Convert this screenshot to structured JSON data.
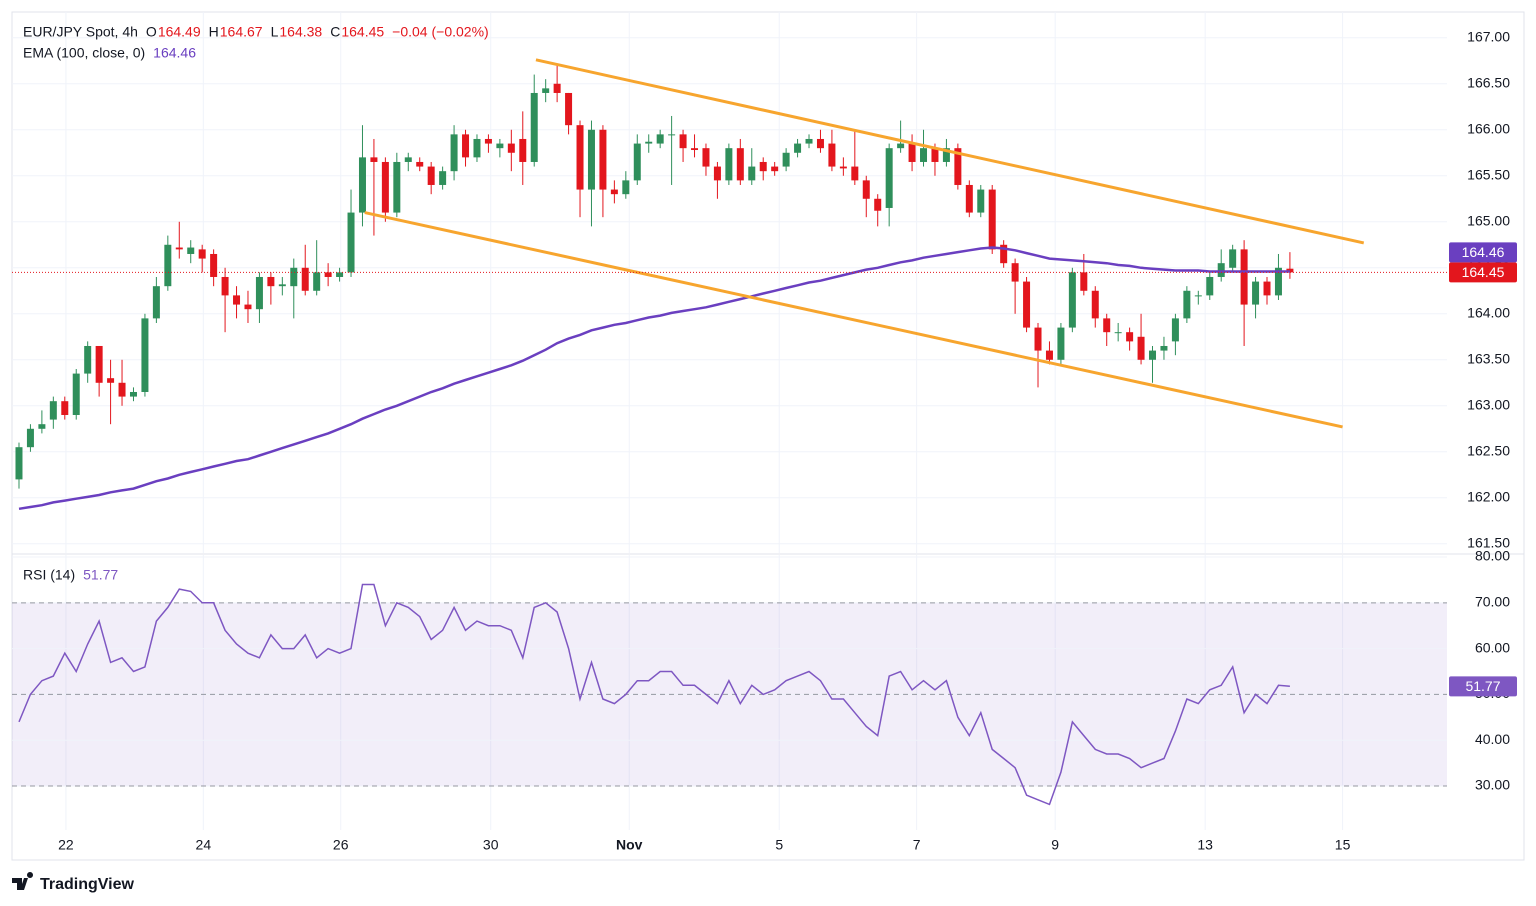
{
  "header": {
    "symbol": "EUR/JPY Spot, 4h",
    "ohlc_labels": [
      "O",
      "H",
      "L",
      "C"
    ],
    "change": "−0.04 (−0.02%)"
  },
  "footer": "TradingView",
  "chart_data": [
    {
      "type": "candlestick",
      "up_color": "#2f8f5b",
      "down_color": "#e3161d",
      "open": [
        162.2,
        162.55,
        162.75,
        162.85,
        163.05,
        162.9,
        163.35,
        163.65,
        163.3,
        163.25,
        163.1,
        163.15,
        163.95,
        164.3,
        164.72,
        164.65,
        164.7,
        164.65,
        164.4,
        164.2,
        164.1,
        164.05,
        164.4,
        164.3,
        164.3,
        164.5,
        164.25,
        164.45,
        164.4,
        164.45,
        165.1,
        165.7,
        165.65,
        165.1,
        165.65,
        165.65,
        165.6,
        165.4,
        165.55,
        165.95,
        165.7,
        165.9,
        165.8,
        165.85,
        165.9,
        165.65,
        166.4,
        166.5,
        166.4,
        166.05,
        165.35,
        166.0,
        165.35,
        165.3,
        165.45,
        165.85,
        165.85,
        165.95,
        165.95,
        165.8,
        165.8,
        165.6,
        165.45,
        165.8,
        165.45,
        165.65,
        165.6,
        165.6,
        165.75,
        165.85,
        165.9,
        165.85,
        165.6,
        165.6,
        165.45,
        165.25,
        165.15,
        165.8,
        165.85,
        165.65,
        165.8,
        165.65,
        165.8,
        165.4,
        165.1,
        165.35,
        164.75,
        164.55,
        164.35,
        163.85,
        163.6,
        163.5,
        163.85,
        164.45,
        164.25,
        163.95,
        163.8,
        163.8,
        163.75,
        163.5,
        163.6,
        163.7,
        163.95,
        164.2,
        164.2,
        164.4,
        164.5,
        164.7,
        164.1,
        164.35,
        164.2,
        164.49
      ],
      "high": [
        162.6,
        162.8,
        162.95,
        163.1,
        163.1,
        163.4,
        163.7,
        163.65,
        163.5,
        163.5,
        163.2,
        164.0,
        164.4,
        164.85,
        165.0,
        164.8,
        164.75,
        164.7,
        164.5,
        164.3,
        164.25,
        164.45,
        164.45,
        164.4,
        164.6,
        164.75,
        164.8,
        164.55,
        164.5,
        165.35,
        166.05,
        165.9,
        165.7,
        165.75,
        165.75,
        165.7,
        165.65,
        165.6,
        166.05,
        166.0,
        165.95,
        165.95,
        165.9,
        166.0,
        166.2,
        166.6,
        166.55,
        166.7,
        166.4,
        166.1,
        166.1,
        166.05,
        165.45,
        165.55,
        165.95,
        165.95,
        166.0,
        166.15,
        166.0,
        165.95,
        165.85,
        165.65,
        165.85,
        165.9,
        165.8,
        165.7,
        165.65,
        165.8,
        165.9,
        165.95,
        166.0,
        166.0,
        165.7,
        166.0,
        165.5,
        165.3,
        165.85,
        166.1,
        165.95,
        166.0,
        165.85,
        165.9,
        165.85,
        165.45,
        165.4,
        165.4,
        164.8,
        164.6,
        164.4,
        163.9,
        163.7,
        163.9,
        164.5,
        164.65,
        164.3,
        164.0,
        163.9,
        163.85,
        164.0,
        163.65,
        163.75,
        164.0,
        164.3,
        164.25,
        164.45,
        164.7,
        164.75,
        164.8,
        164.4,
        164.4,
        164.65,
        164.67
      ],
      "low": [
        162.1,
        162.5,
        162.7,
        162.75,
        162.85,
        162.85,
        163.25,
        163.1,
        162.8,
        163.0,
        163.05,
        163.1,
        163.9,
        164.25,
        164.6,
        164.55,
        164.45,
        164.3,
        163.8,
        163.95,
        163.9,
        163.9,
        164.1,
        164.2,
        163.95,
        164.2,
        164.2,
        164.3,
        164.35,
        164.4,
        164.95,
        164.85,
        165.0,
        165.05,
        165.55,
        165.55,
        165.3,
        165.35,
        165.45,
        165.6,
        165.65,
        165.75,
        165.7,
        165.55,
        165.4,
        165.6,
        166.3,
        166.3,
        165.95,
        165.05,
        164.95,
        165.05,
        165.2,
        165.25,
        165.4,
        165.75,
        165.8,
        165.4,
        165.65,
        165.7,
        165.5,
        165.25,
        165.4,
        165.4,
        165.4,
        165.45,
        165.5,
        165.55,
        165.7,
        165.8,
        165.75,
        165.55,
        165.5,
        165.4,
        165.05,
        164.95,
        164.95,
        165.75,
        165.55,
        165.6,
        165.5,
        165.6,
        165.35,
        165.05,
        165.05,
        164.65,
        164.5,
        164.0,
        163.8,
        163.2,
        163.45,
        163.45,
        163.8,
        164.2,
        163.85,
        163.65,
        163.7,
        163.6,
        163.45,
        163.25,
        163.5,
        163.55,
        163.9,
        164.1,
        164.15,
        164.35,
        164.45,
        163.65,
        163.95,
        164.1,
        164.15,
        164.38
      ],
      "close": [
        162.55,
        162.75,
        162.8,
        163.05,
        162.9,
        163.35,
        163.65,
        163.25,
        163.25,
        163.1,
        163.15,
        163.95,
        164.3,
        164.75,
        164.7,
        164.72,
        164.6,
        164.4,
        164.2,
        164.1,
        164.05,
        164.4,
        164.3,
        164.32,
        164.5,
        164.25,
        164.45,
        164.4,
        164.45,
        165.1,
        165.7,
        165.65,
        165.1,
        165.65,
        165.7,
        165.6,
        165.4,
        165.55,
        165.95,
        165.7,
        165.9,
        165.85,
        165.85,
        165.75,
        165.65,
        166.4,
        166.45,
        166.4,
        166.05,
        165.35,
        166.0,
        165.35,
        165.3,
        165.45,
        165.85,
        165.87,
        165.95,
        165.95,
        165.8,
        165.78,
        165.6,
        165.45,
        165.8,
        165.45,
        165.6,
        165.55,
        165.55,
        165.75,
        165.85,
        165.9,
        165.8,
        165.6,
        165.58,
        165.45,
        165.25,
        165.12,
        165.8,
        165.85,
        165.65,
        165.8,
        165.65,
        165.8,
        165.4,
        165.1,
        165.35,
        164.7,
        164.55,
        164.35,
        163.85,
        163.6,
        163.5,
        163.85,
        164.45,
        164.25,
        163.95,
        163.8,
        163.8,
        163.7,
        163.5,
        163.6,
        163.65,
        163.95,
        164.25,
        164.2,
        164.4,
        164.55,
        164.7,
        164.1,
        164.35,
        164.2,
        164.5,
        164.45
      ],
      "ema": {
        "name": "EMA (100, close, 0)",
        "color": "#6a3fc0",
        "values": [
          161.88,
          161.9,
          161.92,
          161.95,
          161.97,
          161.99,
          162.01,
          162.03,
          162.06,
          162.08,
          162.1,
          162.14,
          162.18,
          162.21,
          162.25,
          162.28,
          162.31,
          162.34,
          162.37,
          162.4,
          162.42,
          162.46,
          162.5,
          162.54,
          162.58,
          162.62,
          162.66,
          162.7,
          162.75,
          162.8,
          162.86,
          162.91,
          162.96,
          163.0,
          163.05,
          163.1,
          163.15,
          163.19,
          163.24,
          163.28,
          163.32,
          163.36,
          163.4,
          163.44,
          163.49,
          163.55,
          163.61,
          163.68,
          163.73,
          163.77,
          163.82,
          163.85,
          163.88,
          163.9,
          163.93,
          163.96,
          163.98,
          164.01,
          164.03,
          164.05,
          164.07,
          164.1,
          164.13,
          164.16,
          164.19,
          164.22,
          164.25,
          164.28,
          164.31,
          164.34,
          164.36,
          164.39,
          164.42,
          164.45,
          164.48,
          164.5,
          164.53,
          164.56,
          164.58,
          164.61,
          164.63,
          164.65,
          164.67,
          164.69,
          164.71,
          164.72,
          164.71,
          164.69,
          164.66,
          164.63,
          164.6,
          164.59,
          164.58,
          164.57,
          164.56,
          164.55,
          164.53,
          164.52,
          164.5,
          164.49,
          164.48,
          164.47,
          164.47,
          164.47,
          164.46,
          164.46,
          164.46,
          164.46,
          164.46,
          164.46,
          164.46,
          164.46
        ]
      },
      "trend_color": "#f7a52e",
      "trend_lines": [
        {
          "x": [
            45.15,
            117.45
          ],
          "y": [
            166.76,
            164.77
          ]
        },
        {
          "x": [
            30.2,
            115.6
          ],
          "y": [
            165.1,
            162.77
          ]
        }
      ],
      "xlim": [
        -0.61,
        124.72
      ],
      "ylim": [
        161.4,
        167.28
      ],
      "yticks": [
        {
          "value": 161.5,
          "label": "161.50"
        },
        {
          "value": 162,
          "label": "162.00"
        },
        {
          "value": 162.5,
          "label": "162.50"
        },
        {
          "value": 163,
          "label": "163.00"
        },
        {
          "value": 163.5,
          "label": "163.50"
        },
        {
          "value": 164,
          "label": "164.00"
        },
        {
          "value": 164.5,
          "label": "164.50"
        },
        {
          "value": 165,
          "label": "165.00"
        },
        {
          "value": 165.5,
          "label": "165.50"
        },
        {
          "value": 166,
          "label": "166.00"
        },
        {
          "value": 166.5,
          "label": "166.50"
        },
        {
          "value": 167,
          "label": "167.00"
        }
      ],
      "grid": true
    },
    {
      "type": "line",
      "name": "RSI (14)",
      "color": "#7e57c2",
      "values": [
        44,
        50,
        53,
        54,
        59,
        55,
        61,
        66,
        57,
        58,
        55,
        56,
        66,
        69,
        73,
        72.5,
        70,
        70,
        64,
        61,
        59,
        58,
        63,
        60,
        60,
        63,
        58,
        60,
        59,
        60,
        74,
        74,
        65,
        70,
        69,
        67,
        62,
        64,
        69,
        64,
        66,
        65,
        65,
        64,
        58,
        69,
        70,
        68,
        60,
        49,
        57,
        49,
        48,
        50,
        53,
        53,
        55,
        55,
        52,
        52,
        50,
        48,
        53,
        48,
        52,
        50,
        51,
        53,
        54,
        55,
        53,
        49,
        49,
        46,
        43,
        41,
        54,
        55,
        51,
        53,
        51,
        53,
        45,
        41,
        46,
        38,
        36,
        34,
        28,
        27,
        26,
        33,
        44,
        41,
        38,
        37,
        37,
        36,
        34,
        35,
        36,
        42,
        49,
        48,
        51,
        52,
        56,
        46,
        50,
        48,
        52,
        51.77
      ],
      "bands": {
        "upper": 70,
        "middle": 50,
        "lower": 30
      },
      "band_color": "#7e57c2",
      "xlim": [
        -0.61,
        124.72
      ],
      "xticks": [
        {
          "value": 4.1,
          "label": "22"
        },
        {
          "value": 16.1,
          "label": "24"
        },
        {
          "value": 28.1,
          "label": "26"
        },
        {
          "value": 41.2,
          "label": "30"
        },
        {
          "value": 53.3,
          "label": "Nov"
        },
        {
          "value": 66.4,
          "label": "5"
        },
        {
          "value": 78.4,
          "label": "7"
        },
        {
          "value": 90.5,
          "label": "9"
        },
        {
          "value": 103.6,
          "label": "13"
        },
        {
          "value": 115.6,
          "label": "15"
        }
      ],
      "ylim": [
        20.4,
        80.44
      ],
      "yticks": [
        {
          "value": 30,
          "label": "30.00"
        },
        {
          "value": 40,
          "label": "40.00"
        },
        {
          "value": 50,
          "label": "50.00"
        },
        {
          "value": 60,
          "label": "60.00"
        },
        {
          "value": 70,
          "label": "70.00"
        },
        {
          "value": 80,
          "label": "80.00"
        }
      ],
      "grid": true
    }
  ]
}
